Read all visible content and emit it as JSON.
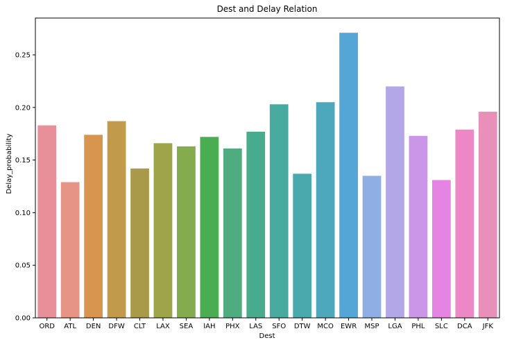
{
  "chart_data": {
    "type": "bar",
    "title": "Dest and Delay Relation",
    "xlabel": "Dest",
    "ylabel": "Delay_probability",
    "categories": [
      "ORD",
      "ATL",
      "DEN",
      "DFW",
      "CLT",
      "LAX",
      "SEA",
      "IAH",
      "PHX",
      "LAS",
      "SFO",
      "DTW",
      "MCO",
      "EWR",
      "MSP",
      "LGA",
      "PHL",
      "SLC",
      "DCA",
      "JFK"
    ],
    "values": [
      0.183,
      0.129,
      0.174,
      0.187,
      0.142,
      0.166,
      0.163,
      0.172,
      0.161,
      0.177,
      0.203,
      0.137,
      0.205,
      0.271,
      0.135,
      0.22,
      0.173,
      0.131,
      0.179,
      0.196
    ],
    "colors": [
      "#e8909a",
      "#e59486",
      "#d8954f",
      "#c29a4c",
      "#a89a48",
      "#9da449",
      "#84ab4d",
      "#4aad52",
      "#4eac80",
      "#49ab8e",
      "#49ab9f",
      "#4aa9ac",
      "#4da8bb",
      "#54a6d6",
      "#8fafe3",
      "#b4a7e8",
      "#cc96e8",
      "#e584e2",
      "#eb88c5",
      "#e88fba"
    ],
    "ylim": [
      0,
      0.285
    ],
    "yticks": [
      "0.00",
      "0.05",
      "0.10",
      "0.15",
      "0.20",
      "0.25"
    ],
    "grid": false,
    "legend": "none"
  }
}
